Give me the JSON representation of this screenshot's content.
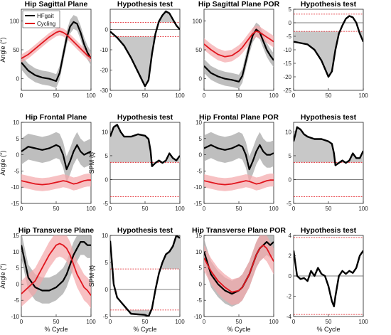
{
  "colors": {
    "hfgait": "#000000",
    "cycling": "#e0151d",
    "hfgait_band": "#a8a8a8",
    "cycling_band": "#f4a7a9",
    "spm_fill": "#c8c8c8",
    "threshold": "#e0151d"
  },
  "legend": {
    "hfgait": "HFgait",
    "cycling": "Cycling"
  },
  "chart_data": [
    {
      "id": "hip-sagittal",
      "type": "line",
      "title": "Hip Sagittal Plane",
      "xlabel": "",
      "ylabel": "Angle (°)",
      "xlim": [
        0,
        100
      ],
      "ylim": [
        -20,
        120
      ],
      "xticks": [
        0,
        50,
        100
      ],
      "yticks": [
        0,
        50,
        100
      ],
      "x": [
        0,
        10,
        20,
        30,
        40,
        50,
        55,
        60,
        65,
        70,
        75,
        80,
        85,
        90,
        95,
        100
      ],
      "series": [
        {
          "name": "HFgait",
          "role": "hfgait",
          "values": [
            28,
            14,
            6,
            2,
            0,
            -4,
            10,
            40,
            70,
            90,
            98,
            95,
            80,
            60,
            45,
            35
          ],
          "band": 12
        },
        {
          "name": "Cycling",
          "role": "cycling",
          "values": [
            35,
            42,
            52,
            62,
            72,
            80,
            82,
            80,
            76,
            70,
            64,
            58,
            52,
            46,
            40,
            36
          ],
          "band": 7
        }
      ]
    },
    {
      "id": "spm-sagittal",
      "type": "line",
      "title": "Hypothesis test",
      "xlabel": "",
      "ylabel": "",
      "xlim": [
        0,
        100
      ],
      "ylim": [
        -30,
        10
      ],
      "xticks": [
        0,
        50,
        100
      ],
      "yticks": [
        -30,
        -20,
        -10,
        0
      ],
      "threshold": 3.5,
      "zero": true,
      "x": [
        0,
        10,
        20,
        30,
        40,
        50,
        55,
        60,
        65,
        70,
        75,
        80,
        85,
        90,
        95,
        100
      ],
      "series": [
        {
          "role": "spm",
          "values": [
            -1,
            -4,
            -8,
            -14,
            -21,
            -28,
            -25,
            -12,
            -2,
            4,
            7,
            9,
            8,
            5,
            2,
            0
          ]
        }
      ]
    },
    {
      "id": "hip-sagittal-por",
      "type": "line",
      "title": "Hip Sagittal Plane POR",
      "xlabel": "",
      "ylabel": "",
      "xlim": [
        0,
        100
      ],
      "ylim": [
        -20,
        120
      ],
      "xticks": [
        0,
        50,
        100
      ],
      "yticks": [
        0,
        50,
        100
      ],
      "x": [
        0,
        10,
        20,
        30,
        40,
        50,
        55,
        60,
        65,
        70,
        75,
        80,
        85,
        90,
        95,
        100
      ],
      "series": [
        {
          "name": "HFgait",
          "role": "hfgait",
          "values": [
            22,
            10,
            4,
            0,
            -2,
            -5,
            5,
            30,
            55,
            75,
            85,
            80,
            65,
            50,
            40,
            32
          ],
          "band": 12
        },
        {
          "name": "Cycling",
          "role": "cycling",
          "values": [
            60,
            50,
            42,
            38,
            40,
            48,
            54,
            62,
            70,
            78,
            82,
            80,
            76,
            72,
            68,
            64
          ],
          "band": 10
        }
      ]
    },
    {
      "id": "spm-sagittal-por",
      "type": "line",
      "title": "Hypothesis test",
      "xlabel": "",
      "ylabel": "",
      "xlim": [
        0,
        100
      ],
      "ylim": [
        -25,
        5
      ],
      "xticks": [
        0,
        50,
        100
      ],
      "yticks": [
        -25,
        -20,
        -15,
        -10,
        -5,
        0,
        5
      ],
      "threshold": 3.2,
      "zero": true,
      "x": [
        0,
        10,
        20,
        30,
        40,
        50,
        55,
        60,
        65,
        70,
        75,
        80,
        85,
        90,
        95,
        100
      ],
      "series": [
        {
          "role": "spm",
          "values": [
            -7,
            -7.5,
            -8,
            -10,
            -14,
            -20,
            -18,
            -10,
            -4,
            -1,
            1.5,
            2.5,
            2,
            0,
            -4,
            -7
          ]
        }
      ]
    },
    {
      "id": "hip-frontal",
      "type": "line",
      "title": "Hip Frontal Plane",
      "xlabel": "",
      "ylabel": "Angle (°)",
      "xlim": [
        0,
        100
      ],
      "ylim": [
        -15,
        10
      ],
      "xticks": [
        0,
        50,
        100
      ],
      "yticks": [
        -15,
        -10,
        -5,
        0,
        5,
        10
      ],
      "x": [
        0,
        10,
        20,
        30,
        40,
        50,
        55,
        60,
        65,
        70,
        75,
        80,
        85,
        90,
        95,
        100
      ],
      "series": [
        {
          "name": "HFgait",
          "role": "hfgait",
          "values": [
            1,
            2.5,
            2,
            1.5,
            2,
            3,
            2.5,
            0,
            -4.5,
            -2,
            1,
            3,
            1,
            0,
            0.5,
            1
          ],
          "band": 4
        },
        {
          "name": "Cycling",
          "role": "cycling",
          "values": [
            -8,
            -8.5,
            -9,
            -9.2,
            -9,
            -8.5,
            -8.3,
            -8,
            -8.2,
            -8.6,
            -9,
            -8.8,
            -8.4,
            -8,
            -7.8,
            -7.8
          ],
          "band": 2
        }
      ]
    },
    {
      "id": "spm-frontal",
      "type": "line",
      "title": "Hypothesis test",
      "xlabel": "",
      "ylabel": "SPM {t}",
      "xlim": [
        0,
        100
      ],
      "ylim": [
        -5,
        12
      ],
      "xticks": [
        0,
        50,
        100
      ],
      "yticks": [
        -5,
        0,
        5,
        10
      ],
      "threshold": 3.6,
      "zero": true,
      "x": [
        0,
        5,
        10,
        15,
        20,
        30,
        40,
        50,
        55,
        58,
        60,
        65,
        70,
        75,
        80,
        85,
        90,
        95,
        100
      ],
      "series": [
        {
          "role": "spm",
          "values": [
            9,
            11,
            11.5,
            10,
            9,
            9,
            9.5,
            9.2,
            8.5,
            6,
            2.8,
            3.5,
            4,
            3.5,
            4,
            5.5,
            4.5,
            4,
            5
          ]
        }
      ]
    },
    {
      "id": "hip-frontal-por",
      "type": "line",
      "title": "Hip Frontal Plane POR",
      "xlabel": "",
      "ylabel": "",
      "xlim": [
        0,
        100
      ],
      "ylim": [
        -15,
        10
      ],
      "xticks": [
        0,
        50,
        100
      ],
      "yticks": [
        -15,
        -10,
        -5,
        0,
        5,
        10
      ],
      "x": [
        0,
        10,
        20,
        30,
        40,
        50,
        55,
        60,
        65,
        70,
        75,
        80,
        85,
        90,
        95,
        100
      ],
      "series": [
        {
          "name": "HFgait",
          "role": "hfgait",
          "values": [
            2,
            3,
            2,
            1.5,
            2,
            3,
            2.5,
            0,
            -4.5,
            -2,
            1,
            3,
            1,
            0,
            0,
            0.5
          ],
          "band": 4
        },
        {
          "name": "Cycling",
          "role": "cycling",
          "values": [
            -8,
            -8.5,
            -9,
            -9.2,
            -9,
            -8.5,
            -8.3,
            -8,
            -8.2,
            -8.6,
            -9,
            -8.8,
            -8.4,
            -8,
            -7.8,
            -7.8
          ],
          "band": 2
        }
      ]
    },
    {
      "id": "spm-frontal-por",
      "type": "line",
      "title": "Hypothesis test",
      "xlabel": "",
      "ylabel": "",
      "xlim": [
        0,
        100
      ],
      "ylim": [
        -5,
        12
      ],
      "xticks": [
        0,
        50,
        100
      ],
      "yticks": [
        -5,
        0,
        5,
        10
      ],
      "threshold": 3.6,
      "zero": true,
      "x": [
        0,
        5,
        10,
        15,
        20,
        30,
        40,
        50,
        55,
        58,
        60,
        65,
        70,
        75,
        80,
        85,
        90,
        95,
        100
      ],
      "series": [
        {
          "role": "spm",
          "values": [
            8,
            11,
            10.5,
            9.5,
            9,
            8.5,
            8.5,
            8,
            7.5,
            5.5,
            3,
            3.5,
            4,
            3.5,
            4,
            5.5,
            4.5,
            4.5,
            6
          ]
        }
      ]
    },
    {
      "id": "hip-transverse",
      "type": "line",
      "title": "Hip Transverse Plane",
      "xlabel": "% Cycle",
      "ylabel": "Angle (°)",
      "xlim": [
        0,
        100
      ],
      "ylim": [
        -10,
        15
      ],
      "xticks": [
        0,
        50,
        100
      ],
      "yticks": [
        -10,
        -5,
        0,
        5,
        10,
        15
      ],
      "x": [
        0,
        10,
        20,
        30,
        40,
        50,
        55,
        60,
        65,
        70,
        75,
        80,
        85,
        90,
        95,
        100
      ],
      "series": [
        {
          "name": "HFgait",
          "role": "hfgait",
          "values": [
            12,
            2,
            -1,
            -2,
            -2,
            -1,
            0,
            1,
            3,
            6,
            9,
            11,
            13,
            13,
            12,
            12
          ],
          "band": 4
        },
        {
          "name": "Cycling",
          "role": "cycling",
          "values": [
            -3,
            -1,
            1,
            5,
            9,
            12,
            12.5,
            12,
            11,
            9,
            6,
            3,
            1,
            -1,
            -2,
            -3.5
          ],
          "band": 4
        }
      ]
    },
    {
      "id": "spm-transverse",
      "type": "line",
      "title": "Hypothesis test",
      "xlabel": "% Cycle",
      "ylabel": "SPM {t}",
      "xlim": [
        0,
        100
      ],
      "ylim": [
        -5,
        10
      ],
      "xticks": [
        0,
        50,
        100
      ],
      "yticks": [
        -5,
        0,
        5,
        10
      ],
      "threshold": 3.8,
      "zero": true,
      "x": [
        0,
        5,
        10,
        20,
        30,
        40,
        50,
        55,
        60,
        65,
        70,
        75,
        80,
        85,
        90,
        95,
        100
      ],
      "series": [
        {
          "role": "spm",
          "values": [
            9,
            1,
            -1.5,
            -3,
            -4.5,
            -4.6,
            -4.7,
            -5,
            -3.5,
            0,
            3,
            5,
            6.5,
            7,
            8,
            10,
            9.5
          ]
        }
      ]
    },
    {
      "id": "hip-transverse-por",
      "type": "line",
      "title": "Hip Transverse Plane POR",
      "xlabel": "% Cycle",
      "ylabel": "",
      "xlim": [
        0,
        100
      ],
      "ylim": [
        -10,
        15
      ],
      "xticks": [
        0,
        50,
        100
      ],
      "yticks": [
        -10,
        -5,
        0,
        5,
        10,
        15
      ],
      "x": [
        0,
        10,
        20,
        30,
        40,
        50,
        55,
        60,
        65,
        70,
        75,
        80,
        85,
        90,
        95,
        100
      ],
      "series": [
        {
          "name": "HFgait",
          "role": "hfgait",
          "values": [
            10,
            3,
            0,
            -2,
            -3,
            -2,
            -1,
            1,
            3,
            6,
            9,
            11,
            12,
            13,
            12,
            13
          ],
          "band": 4
        },
        {
          "name": "Cycling",
          "role": "cycling",
          "values": [
            8,
            4,
            1,
            -1,
            -2.5,
            -2,
            -1,
            1,
            3,
            6,
            9,
            11,
            12,
            11,
            9,
            7
          ],
          "band": 4
        }
      ]
    },
    {
      "id": "spm-transverse-por",
      "type": "line",
      "title": "Hypothesis test",
      "xlabel": "% Cycle",
      "ylabel": "",
      "xlim": [
        0,
        100
      ],
      "ylim": [
        -4,
        4
      ],
      "xticks": [
        0,
        50,
        100
      ],
      "yticks": [
        -4,
        -2,
        0,
        2,
        4
      ],
      "threshold": 3.8,
      "zero": true,
      "x": [
        0,
        5,
        10,
        15,
        20,
        25,
        30,
        35,
        40,
        45,
        50,
        55,
        58,
        60,
        65,
        70,
        75,
        80,
        85,
        90,
        95,
        100
      ],
      "series": [
        {
          "role": "spm",
          "values": [
            2.5,
            0,
            -0.3,
            -0.2,
            -0.5,
            0.5,
            0,
            0.8,
            0.2,
            0,
            -1,
            -2.5,
            -3,
            -2,
            0,
            0.5,
            0.2,
            0.5,
            0.3,
            0.8,
            2,
            2.5
          ]
        }
      ]
    }
  ]
}
